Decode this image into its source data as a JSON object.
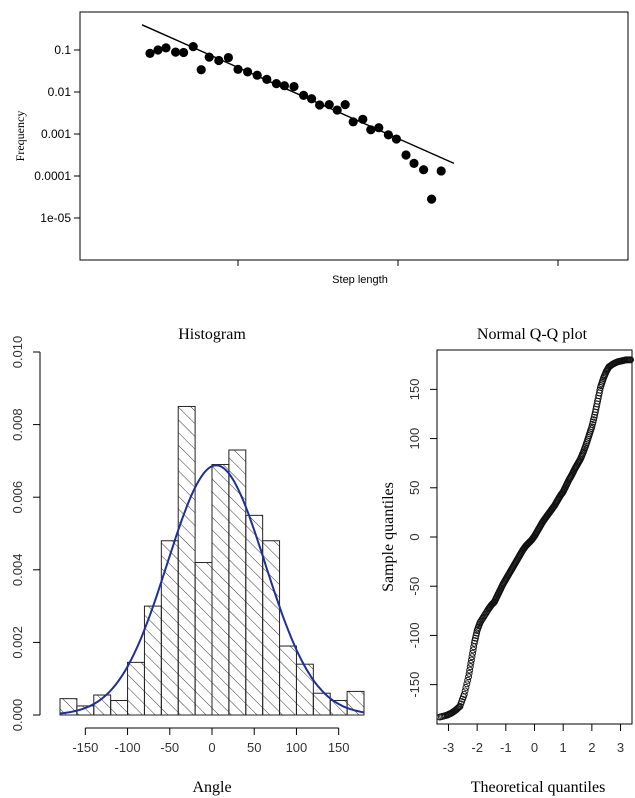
{
  "chart_data": [
    {
      "type": "scatter",
      "title": "",
      "xlabel": "Step length",
      "ylabel": "Frequency",
      "yscale": "log",
      "xscale": "log",
      "yticks": [
        "0.1",
        "0.01",
        "0.001",
        "0.0001",
        "1e-05"
      ],
      "xtick_labels_visible": false,
      "points_log10": [
        [
          -0.55,
          -1.08
        ],
        [
          -0.5,
          -1.0
        ],
        [
          -0.45,
          -0.95
        ],
        [
          -0.39,
          -1.05
        ],
        [
          -0.34,
          -1.06
        ],
        [
          -0.28,
          -0.92
        ],
        [
          -0.23,
          -1.47
        ],
        [
          -0.18,
          -1.17
        ],
        [
          -0.12,
          -1.25
        ],
        [
          -0.06,
          -1.18
        ],
        [
          0.0,
          -1.46
        ],
        [
          0.06,
          -1.52
        ],
        [
          0.12,
          -1.6
        ],
        [
          0.18,
          -1.7
        ],
        [
          0.24,
          -1.8
        ],
        [
          0.29,
          -1.85
        ],
        [
          0.35,
          -1.87
        ],
        [
          0.41,
          -2.08
        ],
        [
          0.46,
          -2.16
        ],
        [
          0.51,
          -2.31
        ],
        [
          0.57,
          -2.3
        ],
        [
          0.62,
          -2.43
        ],
        [
          0.67,
          -2.3
        ],
        [
          0.72,
          -2.71
        ],
        [
          0.78,
          -2.65
        ],
        [
          0.83,
          -2.9
        ],
        [
          0.88,
          -2.85
        ],
        [
          0.94,
          -3.02
        ],
        [
          0.99,
          -3.12
        ],
        [
          1.05,
          -3.5
        ],
        [
          1.1,
          -3.7
        ],
        [
          1.16,
          -3.85
        ],
        [
          1.21,
          -4.55
        ],
        [
          1.27,
          -3.88
        ]
      ],
      "fit_line_log10": [
        [
          -0.6,
          -0.4
        ],
        [
          1.35,
          -3.7
        ]
      ],
      "marker": "filled-circle",
      "color": "#000000"
    },
    {
      "type": "bar",
      "title": "Histogram",
      "xlabel": "Angle",
      "ylabel": "",
      "xlim": [
        -180,
        180
      ],
      "ylim": [
        0,
        0.01
      ],
      "xticks": [
        -150,
        -100,
        -50,
        0,
        50,
        100,
        150
      ],
      "yticks": [
        "0.000",
        "0.002",
        "0.004",
        "0.006",
        "0.008",
        "0.010"
      ],
      "bin_width": 20,
      "bins_left": [
        -180,
        -160,
        -140,
        -120,
        -100,
        -80,
        -60,
        -40,
        -20,
        0,
        20,
        40,
        60,
        80,
        100,
        120,
        140,
        160
      ],
      "values": [
        0.00045,
        0.00025,
        0.00055,
        0.0004,
        0.00145,
        0.003,
        0.0048,
        0.0085,
        0.0042,
        0.0069,
        0.0073,
        0.0055,
        0.0048,
        0.0019,
        0.0014,
        0.0006,
        0.0004,
        0.00065
      ],
      "hatch": "diagonal",
      "density_curve": {
        "mean": 5,
        "sd": 58,
        "color": "#1f2f9a"
      }
    },
    {
      "type": "scatter",
      "title": "Normal Q-Q plot",
      "xlabel": "Theoretical quantiles",
      "ylabel": "Sample quantiles",
      "xlim": [
        -3.4,
        3.4
      ],
      "ylim": [
        -190,
        190
      ],
      "xticks": [
        -3,
        -2,
        -1,
        0,
        1,
        2,
        3
      ],
      "yticks": [
        -150,
        -100,
        -50,
        0,
        50,
        100,
        150
      ],
      "points": [
        [
          -3.3,
          -183
        ],
        [
          -3.05,
          -181
        ],
        [
          -2.9,
          -179
        ],
        [
          -2.75,
          -176
        ],
        [
          -2.6,
          -172
        ],
        [
          -2.45,
          -160
        ],
        [
          -2.3,
          -142
        ],
        [
          -2.2,
          -125
        ],
        [
          -2.1,
          -108
        ],
        [
          -2.0,
          -95
        ],
        [
          -1.9,
          -87
        ],
        [
          -1.75,
          -80
        ],
        [
          -1.6,
          -73
        ],
        [
          -1.5,
          -69
        ],
        [
          -1.4,
          -66
        ],
        [
          -1.3,
          -60
        ],
        [
          -1.2,
          -54
        ],
        [
          -1.1,
          -48
        ],
        [
          -1.0,
          -43
        ],
        [
          -0.9,
          -38
        ],
        [
          -0.8,
          -33
        ],
        [
          -0.7,
          -28
        ],
        [
          -0.6,
          -23
        ],
        [
          -0.5,
          -18
        ],
        [
          -0.4,
          -13
        ],
        [
          -0.3,
          -9
        ],
        [
          -0.2,
          -6
        ],
        [
          -0.1,
          -3
        ],
        [
          0.0,
          1
        ],
        [
          0.1,
          6
        ],
        [
          0.2,
          11
        ],
        [
          0.3,
          16
        ],
        [
          0.4,
          20
        ],
        [
          0.5,
          24
        ],
        [
          0.6,
          28
        ],
        [
          0.7,
          32
        ],
        [
          0.8,
          37
        ],
        [
          0.9,
          42
        ],
        [
          1.0,
          46
        ],
        [
          1.1,
          52
        ],
        [
          1.2,
          58
        ],
        [
          1.3,
          63
        ],
        [
          1.4,
          69
        ],
        [
          1.5,
          74
        ],
        [
          1.6,
          79
        ],
        [
          1.7,
          86
        ],
        [
          1.8,
          94
        ],
        [
          1.9,
          103
        ],
        [
          2.0,
          112
        ],
        [
          2.1,
          124
        ],
        [
          2.2,
          138
        ],
        [
          2.3,
          152
        ],
        [
          2.4,
          161
        ],
        [
          2.5,
          168
        ],
        [
          2.6,
          173
        ],
        [
          2.75,
          176
        ],
        [
          2.9,
          178
        ],
        [
          3.05,
          179
        ],
        [
          3.2,
          180
        ],
        [
          3.35,
          180
        ]
      ],
      "marker": "open-circle"
    }
  ]
}
